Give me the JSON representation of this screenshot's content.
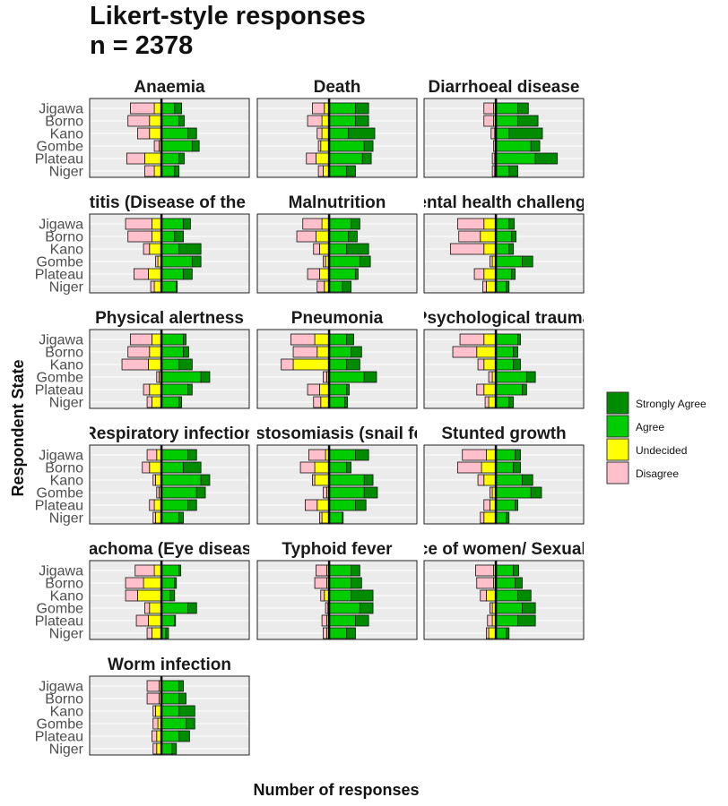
{
  "title": {
    "line1": "Likert-style responses",
    "line2": "n = 2378"
  },
  "chart_data": {
    "type": "bar",
    "orientation": "horizontal-diverging-stacked",
    "ylabel": "Respondent State",
    "xlabel": "Number of responses",
    "categories": [
      "Jigawa",
      "Borno",
      "Kano",
      "Gombe",
      "Plateau",
      "Niger"
    ],
    "levels": [
      "Strongly Agree",
      "Agree",
      "Undecided",
      "Disagree"
    ],
    "colors": {
      "Strongly Agree": "#008B00",
      "Agree": "#00CD00",
      "Undecided": "#FFFF00",
      "Disagree": "#FFC0CB"
    },
    "legend_position": "right",
    "xlim": [
      -60,
      100
    ],
    "panels": [
      {
        "title": "Anaemia",
        "series": [
          {
            "name": "Strongly Agree",
            "values": [
              8,
              6,
              10,
              8,
              6,
              5
            ]
          },
          {
            "name": "Agree",
            "values": [
              15,
              20,
              30,
              35,
              20,
              15
            ]
          },
          {
            "name": "Undecided",
            "values": [
              6,
              10,
              10,
              2,
              14,
              6
            ]
          },
          {
            "name": "Disagree",
            "values": [
              20,
              18,
              10,
              4,
              15,
              8
            ]
          }
        ]
      },
      {
        "title": "Death",
        "series": [
          {
            "name": "Strongly Agree",
            "values": [
              15,
              15,
              30,
              10,
              10,
              10
            ]
          },
          {
            "name": "Agree",
            "values": [
              30,
              30,
              22,
              40,
              38,
              20
            ]
          },
          {
            "name": "Undecided",
            "values": [
              4,
              6,
              6,
              7,
              11,
              5
            ]
          },
          {
            "name": "Disagree",
            "values": [
              10,
              12,
              4,
              2,
              8,
              4
            ]
          }
        ]
      },
      {
        "title": "Diarrhoeal disease",
        "series": [
          {
            "name": "Strongly Agree",
            "values": [
              12,
              23,
              38,
              10,
              25,
              10
            ]
          },
          {
            "name": "Agree",
            "values": [
              25,
              25,
              15,
              40,
              45,
              15
            ]
          },
          {
            "name": "Undecided",
            "values": [
              2,
              2,
              1,
              0,
              1,
              1
            ]
          },
          {
            "name": "Disagree",
            "values": [
              8,
              8,
              3,
              2,
              2,
              2
            ]
          }
        ]
      },
      {
        "title": "Hepatitis (Disease of the liver)",
        "series": [
          {
            "name": "Strongly Agree",
            "values": [
              8,
              10,
              25,
              10,
              10,
              1
            ]
          },
          {
            "name": "Agree",
            "values": [
              25,
              15,
              20,
              35,
              25,
              17
            ]
          },
          {
            "name": "Undecided",
            "values": [
              8,
              8,
              10,
              3,
              11,
              6
            ]
          },
          {
            "name": "Disagree",
            "values": [
              22,
              20,
              5,
              2,
              12,
              3
            ]
          }
        ]
      },
      {
        "title": "Malnutrition",
        "series": [
          {
            "name": "Strongly Agree",
            "values": [
              10,
              10,
              25,
              12,
              3,
              10
            ]
          },
          {
            "name": "Agree",
            "values": [
              25,
              22,
              20,
              35,
              30,
              15
            ]
          },
          {
            "name": "Undecided",
            "values": [
              6,
              11,
              8,
              3,
              8,
              4
            ]
          },
          {
            "name": "Disagree",
            "values": [
              16,
              16,
              5,
              2,
              10,
              6
            ]
          }
        ]
      },
      {
        "title": "Mental health challenges",
        "series": [
          {
            "name": "Strongly Agree",
            "values": [
              6,
              5,
              5,
              12,
              4,
              3
            ]
          },
          {
            "name": "Agree",
            "values": [
              15,
              18,
              15,
              30,
              18,
              12
            ]
          },
          {
            "name": "Undecided",
            "values": [
              10,
              13,
              10,
              3,
              10,
              8
            ]
          },
          {
            "name": "Disagree",
            "values": [
              22,
              18,
              28,
              2,
              8,
              3
            ]
          }
        ]
      },
      {
        "title": "Physical alertness",
        "series": [
          {
            "name": "Strongly Agree",
            "values": [
              3,
              6,
              15,
              10,
              5,
              3
            ]
          },
          {
            "name": "Agree",
            "values": [
              25,
              25,
              20,
              45,
              30,
              20
            ]
          },
          {
            "name": "Undecided",
            "values": [
              8,
              10,
              11,
              2,
              10,
              8
            ]
          },
          {
            "name": "Disagree",
            "values": [
              18,
              18,
              22,
              2,
              5,
              4
            ]
          }
        ]
      },
      {
        "title": "Pneumonia",
        "series": [
          {
            "name": "Strongly Agree",
            "values": [
              8,
              12,
              15,
              14,
              3,
              3
            ]
          },
          {
            "name": "Agree",
            "values": [
              20,
              25,
              20,
              40,
              20,
              18
            ]
          },
          {
            "name": "Undecided",
            "values": [
              12,
              10,
              30,
              2,
              8,
              7
            ]
          },
          {
            "name": "Disagree",
            "values": [
              20,
              20,
              10,
              3,
              10,
              6
            ]
          }
        ]
      },
      {
        "title": "Psychological trauma",
        "series": [
          {
            "name": "Strongly Agree",
            "values": [
              3,
              5,
              8,
              10,
              5,
              5
            ]
          },
          {
            "name": "Agree",
            "values": [
              25,
              20,
              20,
              35,
              30,
              15
            ]
          },
          {
            "name": "Undecided",
            "values": [
              10,
              16,
              10,
              3,
              10,
              6
            ]
          },
          {
            "name": "Disagree",
            "values": [
              20,
              20,
              5,
              3,
              6,
              3
            ]
          }
        ]
      },
      {
        "title": "Respiratory infection",
        "series": [
          {
            "name": "Strongly Agree",
            "values": [
              10,
              20,
              10,
              10,
              10,
              5
            ]
          },
          {
            "name": "Agree",
            "values": [
              30,
              25,
              45,
              40,
              30,
              20
            ]
          },
          {
            "name": "Undecided",
            "values": [
              4,
              10,
              5,
              2,
              6,
              5
            ]
          },
          {
            "name": "Disagree",
            "values": [
              8,
              6,
              2,
              2,
              4,
              2
            ]
          }
        ]
      },
      {
        "title": "Schistosomiasis (snail fever)",
        "series": [
          {
            "name": "Strongly Agree",
            "values": [
              15,
              5,
              10,
              15,
              12,
              1
            ]
          },
          {
            "name": "Agree",
            "values": [
              30,
              20,
              40,
              40,
              30,
              15
            ]
          },
          {
            "name": "Undecided",
            "values": [
              3,
              12,
              12,
              2,
              10,
              6
            ]
          },
          {
            "name": "Disagree",
            "values": [
              14,
              12,
              2,
              3,
              10,
              2
            ]
          }
        ]
      },
      {
        "title": "Stunted growth",
        "series": [
          {
            "name": "Strongly Agree",
            "values": [
              6,
              8,
              12,
              12,
              3,
              3
            ]
          },
          {
            "name": "Agree",
            "values": [
              22,
              20,
              30,
              40,
              22,
              12
            ]
          },
          {
            "name": "Undecided",
            "values": [
              8,
              12,
              10,
              3,
              5,
              10
            ]
          },
          {
            "name": "Disagree",
            "values": [
              20,
              20,
              5,
              2,
              5,
              3
            ]
          }
        ]
      },
      {
        "title": "Trachoma (Eye disease)",
        "series": [
          {
            "name": "Strongly Agree",
            "values": [
              2,
              2,
              5,
              10,
              1,
              3
            ]
          },
          {
            "name": "Agree",
            "values": [
              20,
              15,
              10,
              30,
              15,
              5
            ]
          },
          {
            "name": "Undecided",
            "values": [
              6,
              15,
              20,
              10,
              11,
              8
            ]
          },
          {
            "name": "Disagree",
            "values": [
              16,
              15,
              10,
              4,
              10,
              4
            ]
          }
        ]
      },
      {
        "title": "Typhoid fever",
        "series": [
          {
            "name": "Strongly Agree",
            "values": [
              10,
              12,
              25,
              15,
              15,
              10
            ]
          },
          {
            "name": "Agree",
            "values": [
              25,
              25,
              25,
              35,
              30,
              20
            ]
          },
          {
            "name": "Undecided",
            "values": [
              2,
              2,
              4,
              1,
              2,
              2
            ]
          },
          {
            "name": "Disagree",
            "values": [
              9,
              10,
              3,
              2,
              4,
              3
            ]
          }
        ]
      },
      {
        "title": "Violence of women/ Sexual abuse",
        "series": [
          {
            "name": "Strongly Agree",
            "values": [
              6,
              8,
              15,
              15,
              20,
              3
            ]
          },
          {
            "name": "Agree",
            "values": [
              20,
              22,
              25,
              30,
              25,
              12
            ]
          },
          {
            "name": "Undecided",
            "values": [
              2,
              2,
              8,
              3,
              3,
              6
            ]
          },
          {
            "name": "Disagree",
            "values": [
              15,
              14,
              5,
              2,
              4,
              2
            ]
          }
        ]
      },
      {
        "title": "Worm infection",
        "series": [
          {
            "name": "Strongly Agree",
            "values": [
              5,
              8,
              18,
              10,
              12,
              5
            ]
          },
          {
            "name": "Agree",
            "values": [
              20,
              20,
              20,
              28,
              20,
              12
            ]
          },
          {
            "name": "Undecided",
            "values": [
              2,
              2,
              5,
              3,
              4,
              4
            ]
          },
          {
            "name": "Disagree",
            "values": [
              10,
              10,
              2,
              4,
              4,
              3
            ]
          }
        ]
      }
    ]
  }
}
